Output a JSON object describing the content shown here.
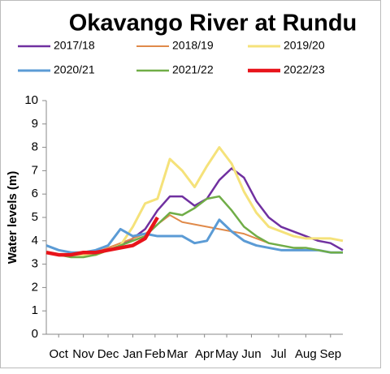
{
  "chart_data": {
    "type": "line",
    "title": "Okavango River at Rundu",
    "y_label": "Water levels (m)",
    "legend": "top",
    "grid": false,
    "x": [
      0,
      0.5,
      1,
      1.5,
      2,
      2.5,
      3,
      3.5,
      4,
      4.5,
      5,
      5.5,
      6,
      6.5,
      7,
      7.5,
      8,
      8.5,
      9,
      9.5,
      10,
      10.5,
      11,
      11.5,
      12
    ],
    "xlim": [
      0,
      12
    ],
    "xticks": [
      {
        "value": 0.5,
        "label": "Oct"
      },
      {
        "value": 1.5,
        "label": "Nov"
      },
      {
        "value": 2.5,
        "label": "Dec"
      },
      {
        "value": 3.5,
        "label": "Jan"
      },
      {
        "value": 4.4,
        "label": "Feb"
      },
      {
        "value": 5.3,
        "label": "Mar"
      },
      {
        "value": 6.4,
        "label": "Apr"
      },
      {
        "value": 7.3,
        "label": "May"
      },
      {
        "value": 8.3,
        "label": "Jun"
      },
      {
        "value": 9.4,
        "label": "Jul"
      },
      {
        "value": 10.5,
        "label": "Aug"
      },
      {
        "value": 11.5,
        "label": "Sep"
      }
    ],
    "ylim": [
      0,
      10
    ],
    "yticks": [
      0,
      1,
      2,
      3,
      4,
      5,
      6,
      7,
      8,
      9,
      10
    ],
    "series": [
      {
        "name": "2017/18",
        "color": "#7030a0",
        "line_width": 2.5,
        "values": [
          3.5,
          3.4,
          3.4,
          3.4,
          3.5,
          3.6,
          3.8,
          4.1,
          4.5,
          5.3,
          5.9,
          5.9,
          5.5,
          5.8,
          6.6,
          7.1,
          6.7,
          5.7,
          5.0,
          4.6,
          4.4,
          4.2,
          4.0,
          3.9,
          3.6
        ]
      },
      {
        "name": "2018/19",
        "color": "#e08a4a",
        "line_width": 2,
        "values": [
          3.5,
          3.4,
          3.4,
          3.4,
          3.5,
          3.7,
          3.9,
          4.1,
          4.3,
          4.7,
          5.1,
          4.8,
          4.7,
          4.6,
          4.5,
          4.4,
          4.3,
          4.1,
          3.9,
          3.8,
          3.7,
          3.6,
          3.6,
          3.5,
          3.5
        ]
      },
      {
        "name": "2019/20",
        "color": "#f5e27a",
        "line_width": 3,
        "values": [
          3.5,
          3.4,
          3.4,
          3.4,
          3.4,
          3.6,
          3.8,
          4.6,
          5.6,
          5.8,
          7.5,
          7.0,
          6.3,
          7.2,
          8.0,
          7.3,
          6.1,
          5.2,
          4.6,
          4.4,
          4.2,
          4.1,
          4.1,
          4.1,
          4.0
        ]
      },
      {
        "name": "2020/21",
        "color": "#5b9bd5",
        "line_width": 3,
        "values": [
          3.8,
          3.6,
          3.5,
          3.5,
          3.6,
          3.8,
          4.5,
          4.2,
          4.3,
          4.2,
          4.2,
          4.2,
          3.9,
          4.0,
          4.9,
          4.4,
          4.0,
          3.8,
          3.7,
          3.6,
          3.6,
          3.6,
          3.6,
          3.5,
          3.5
        ]
      },
      {
        "name": "2021/22",
        "color": "#70ad47",
        "line_width": 2.5,
        "values": [
          3.5,
          3.4,
          3.3,
          3.3,
          3.4,
          3.6,
          3.8,
          4.0,
          4.2,
          4.7,
          5.2,
          5.1,
          5.4,
          5.8,
          5.9,
          5.3,
          4.6,
          4.2,
          3.9,
          3.8,
          3.7,
          3.7,
          3.6,
          3.5,
          3.5
        ]
      },
      {
        "name": "2022/23",
        "color": "#e8141b",
        "line_width": 4.5,
        "values": [
          3.5,
          3.4,
          3.4,
          3.5,
          3.5,
          3.6,
          3.7,
          3.8,
          4.1,
          5.0,
          null,
          null,
          null,
          null,
          null,
          null,
          null,
          null,
          null,
          null,
          null,
          null,
          null,
          null,
          null
        ]
      }
    ]
  }
}
